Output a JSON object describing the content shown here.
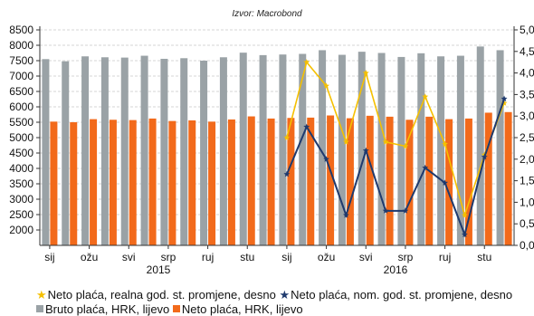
{
  "chart_data": {
    "type": "bar",
    "source_note": "Izvor: Macrobond",
    "x_tick_labels": [
      "sij",
      "ožu",
      "svi",
      "srp",
      "ruj",
      "stu",
      "sij",
      "ožu",
      "svi",
      "srp",
      "ruj",
      "stu"
    ],
    "year_labels": [
      "2015",
      "2016"
    ],
    "left_axis": {
      "ylim": [
        1500,
        8500
      ],
      "ticks": [
        2000,
        2500,
        3000,
        3500,
        4000,
        4500,
        5000,
        5500,
        6000,
        6500,
        7000,
        7500,
        8000,
        8500
      ]
    },
    "right_axis": {
      "ylim": [
        0,
        5
      ],
      "ticks": [
        "0,0",
        "0,5",
        "1,0",
        "1,5",
        "2,0",
        "2,5",
        "3,0",
        "3,5",
        "4,0",
        "4,5",
        "5,0"
      ]
    },
    "grid": true,
    "series": [
      {
        "name": "Bruto plaća, HRK, lijevo",
        "axis": "left",
        "kind": "bar",
        "color": "#9aa2a6",
        "values": [
          7550,
          7480,
          7640,
          7610,
          7600,
          7660,
          7560,
          7580,
          7500,
          7610,
          7760,
          7680,
          7700,
          7720,
          7840,
          7690,
          7790,
          7750,
          7620,
          7740,
          7640,
          7660,
          7960,
          7840
        ]
      },
      {
        "name": "Neto plaća, HRK, lijevo",
        "axis": "left",
        "kind": "bar",
        "color": "#f26a1b",
        "values": [
          5520,
          5500,
          5600,
          5580,
          5570,
          5620,
          5540,
          5560,
          5520,
          5590,
          5690,
          5620,
          5640,
          5650,
          5720,
          5630,
          5710,
          5680,
          5580,
          5680,
          5600,
          5620,
          5810,
          5830
        ]
      },
      {
        "name": "Neto plaća, realna god. st. promjene, desno",
        "axis": "right",
        "kind": "line",
        "color": "#f5c000",
        "x_start_index": 12,
        "values": [
          2.5,
          4.25,
          3.7,
          2.4,
          4.0,
          2.4,
          2.3,
          3.45,
          2.35,
          0.7,
          2.1,
          3.3
        ]
      },
      {
        "name": "Neto plaća, nom. god. st. promjene, desno",
        "axis": "right",
        "kind": "line",
        "color": "#1f3a6e",
        "x_start_index": 12,
        "values": [
          1.65,
          2.75,
          2.0,
          0.7,
          2.2,
          0.8,
          0.8,
          1.8,
          1.45,
          0.25,
          2.05,
          3.4
        ]
      }
    ]
  }
}
